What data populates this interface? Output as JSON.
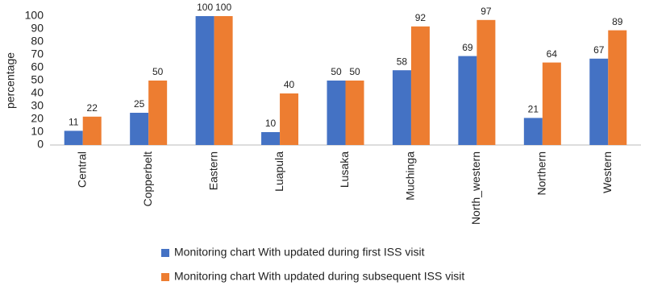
{
  "chart_data": {
    "type": "bar",
    "y_label": "percentage",
    "categories": [
      "Central",
      "Copperbelt",
      "Eastern",
      "Luapula",
      "Lusaka",
      "Muchinga",
      "North_western",
      "Northern",
      "Western"
    ],
    "series": [
      {
        "name": "Monitoring chart With updated during first ISS visit",
        "color": "#4472c4",
        "values": [
          11,
          25,
          100,
          10,
          50,
          58,
          69,
          21,
          67
        ]
      },
      {
        "name": "Monitoring chart With updated during subsequent ISS visit",
        "color": "#ed7d31",
        "values": [
          22,
          50,
          100,
          40,
          50,
          92,
          97,
          64,
          89
        ]
      }
    ],
    "ylim": [
      0,
      100
    ],
    "yticks": [
      0,
      10,
      20,
      30,
      40,
      50,
      60,
      70,
      80,
      90,
      100
    ],
    "grid": false
  }
}
